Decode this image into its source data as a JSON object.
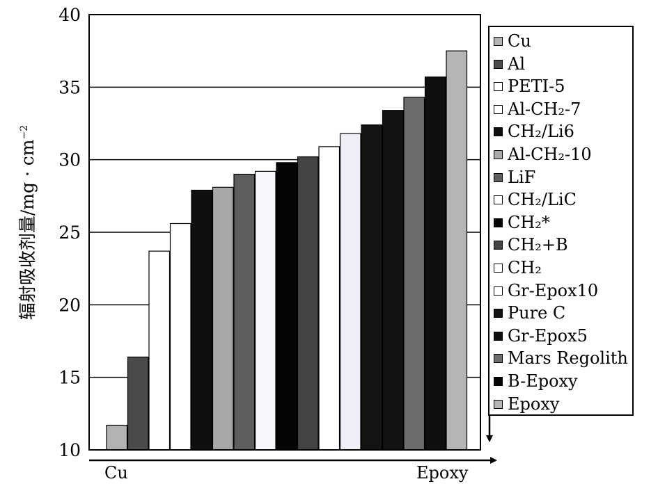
{
  "chart_data": {
    "type": "bar",
    "ylabel": "辐射吸收剂量/mg·cm⁻²",
    "ylim": [
      10,
      40
    ],
    "yticks": [
      10,
      15,
      20,
      25,
      30,
      35,
      40
    ],
    "x_start_label": "Cu",
    "x_end_label": "Epoxy",
    "grid": true,
    "legend_position": "right",
    "categories": [
      "Cu",
      "Al",
      "PETI-5",
      "Al-CH2-7",
      "CH2/Li6",
      "Al-CH2-10",
      "LiF",
      "CH2/LiC",
      "CH2*",
      "CH2+B",
      "CH2",
      "Gr-Epox10",
      "Pure C",
      "Gr-Epox5",
      "Mars Regolith",
      "B-Epoxy",
      "Epoxy"
    ],
    "values": [
      11.7,
      16.4,
      23.7,
      25.6,
      27.9,
      28.1,
      29.0,
      29.2,
      29.8,
      30.2,
      30.9,
      31.8,
      32.4,
      33.4,
      34.3,
      35.7,
      37.5
    ],
    "colors": [
      "#b3b3b3",
      "#4a4a4a",
      "#ffffff",
      "#ffffff",
      "#0f0f0f",
      "#a8a8a8",
      "#5e5e60",
      "#f8f8fc",
      "#050505",
      "#444444",
      "#ffffff",
      "#edeef6",
      "#141414",
      "#121212",
      "#6c6c6e",
      "#0f0f0f",
      "#b5b5b5"
    ]
  },
  "legend": {
    "items": [
      {
        "text": "Cu",
        "color": "#b3b3b3"
      },
      {
        "text": "Al",
        "color": "#4a4a4a"
      },
      {
        "text": "PETI-5",
        "color": "#ffffff"
      },
      {
        "text": "Al-CH₂-7",
        "color": "#ffffff"
      },
      {
        "text": "CH₂/Li6",
        "color": "#0f0f0f"
      },
      {
        "text": "Al-CH₂-10",
        "color": "#a8a8a8"
      },
      {
        "text": "LiF",
        "color": "#5e5e60"
      },
      {
        "text": "CH₂/LiC",
        "color": "#ffffff"
      },
      {
        "text": "CH₂*",
        "color": "#050505"
      },
      {
        "text": "CH₂+B",
        "color": "#444444"
      },
      {
        "text": "CH₂",
        "color": "#ffffff"
      },
      {
        "text": "Gr-Epox10",
        "color": "#ffffff"
      },
      {
        "text": "Pure C",
        "color": "#141414"
      },
      {
        "text": "Gr-Epox5",
        "color": "#0f0f0f"
      },
      {
        "text": "Mars Regolith",
        "color": "#6c6c6e"
      },
      {
        "text": "B-Epoxy",
        "color": "#050505"
      },
      {
        "text": "Epoxy",
        "color": "#b5b5b5"
      }
    ]
  }
}
